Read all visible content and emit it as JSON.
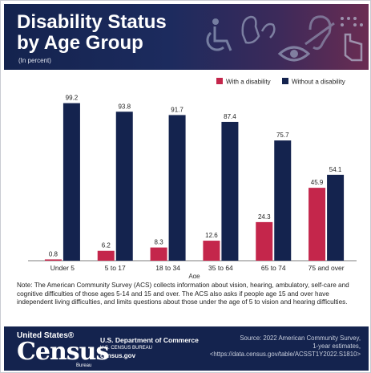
{
  "header": {
    "title_line1": "Disability Status",
    "title_line2": "by Age Group",
    "subtitle": "(In percent)"
  },
  "chart_data": {
    "type": "bar",
    "categories": [
      "Under 5",
      "5 to 17",
      "18 to 34",
      "35 to 64",
      "65 to 74",
      "75 and over"
    ],
    "series": [
      {
        "name": "With a disability",
        "color": "#c4264b",
        "values": [
          0.8,
          6.2,
          8.3,
          12.6,
          24.3,
          45.9
        ]
      },
      {
        "name": "Without a disability",
        "color": "#14234e",
        "values": [
          99.2,
          93.8,
          91.7,
          87.4,
          75.7,
          54.1
        ]
      }
    ],
    "xlabel": "Age",
    "ylabel": "",
    "ylim": [
      0,
      100
    ],
    "grid": false,
    "legend": "top-right"
  },
  "note": "Note: The American Community Survey (ACS) collects information about vision, hearing, ambulatory, self-care and cognitive difficulties of those ages 5-14 and 15 and over. The ACS also asks if people age 15 and over have independent living difficulties, and limits questions about those under the age of 5 to vision and hearing difficulties.",
  "footer": {
    "logo_top": "United States®",
    "logo_main": "Census",
    "logo_sub": "Bureau",
    "dept_name": "U.S. Department of Commerce",
    "dept_bureau": "U.S. CENSUS BUREAU",
    "dept_url": "census.gov",
    "source_line1": "Source: 2022 American Community Survey,",
    "source_line2": "1-year estimates,",
    "source_line3": "<https://data.census.gov/table/ACSST1Y2022.S1810>"
  },
  "icons": [
    "wheelchair-icon",
    "sign-language-icon",
    "eye-icon",
    "ear-icon",
    "braille-touch-icon"
  ]
}
